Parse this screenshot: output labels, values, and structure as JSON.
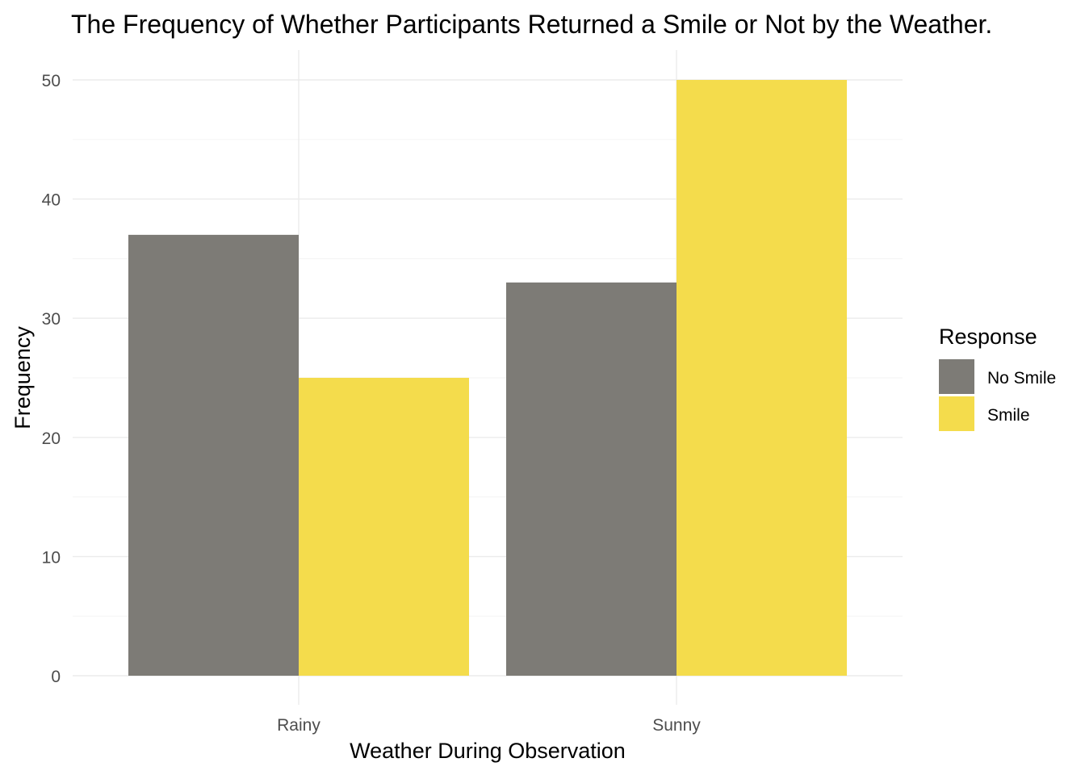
{
  "chart_data": {
    "type": "bar",
    "title": "The Frequency of Whether Participants Returned a Smile or Not by the Weather.",
    "xlabel": "Weather During Observation",
    "ylabel": "Frequency",
    "categories": [
      "Rainy",
      "Sunny"
    ],
    "series": [
      {
        "name": "No Smile",
        "values": [
          37,
          33
        ],
        "color": "#7d7b76"
      },
      {
        "name": "Smile",
        "values": [
          25,
          50
        ],
        "color": "#f4dc4c"
      }
    ],
    "ylim": [
      0,
      52.5
    ],
    "yticks": [
      0,
      10,
      20,
      30,
      40,
      50
    ],
    "grid": true,
    "legend": {
      "title": "Response",
      "position": "right"
    }
  }
}
